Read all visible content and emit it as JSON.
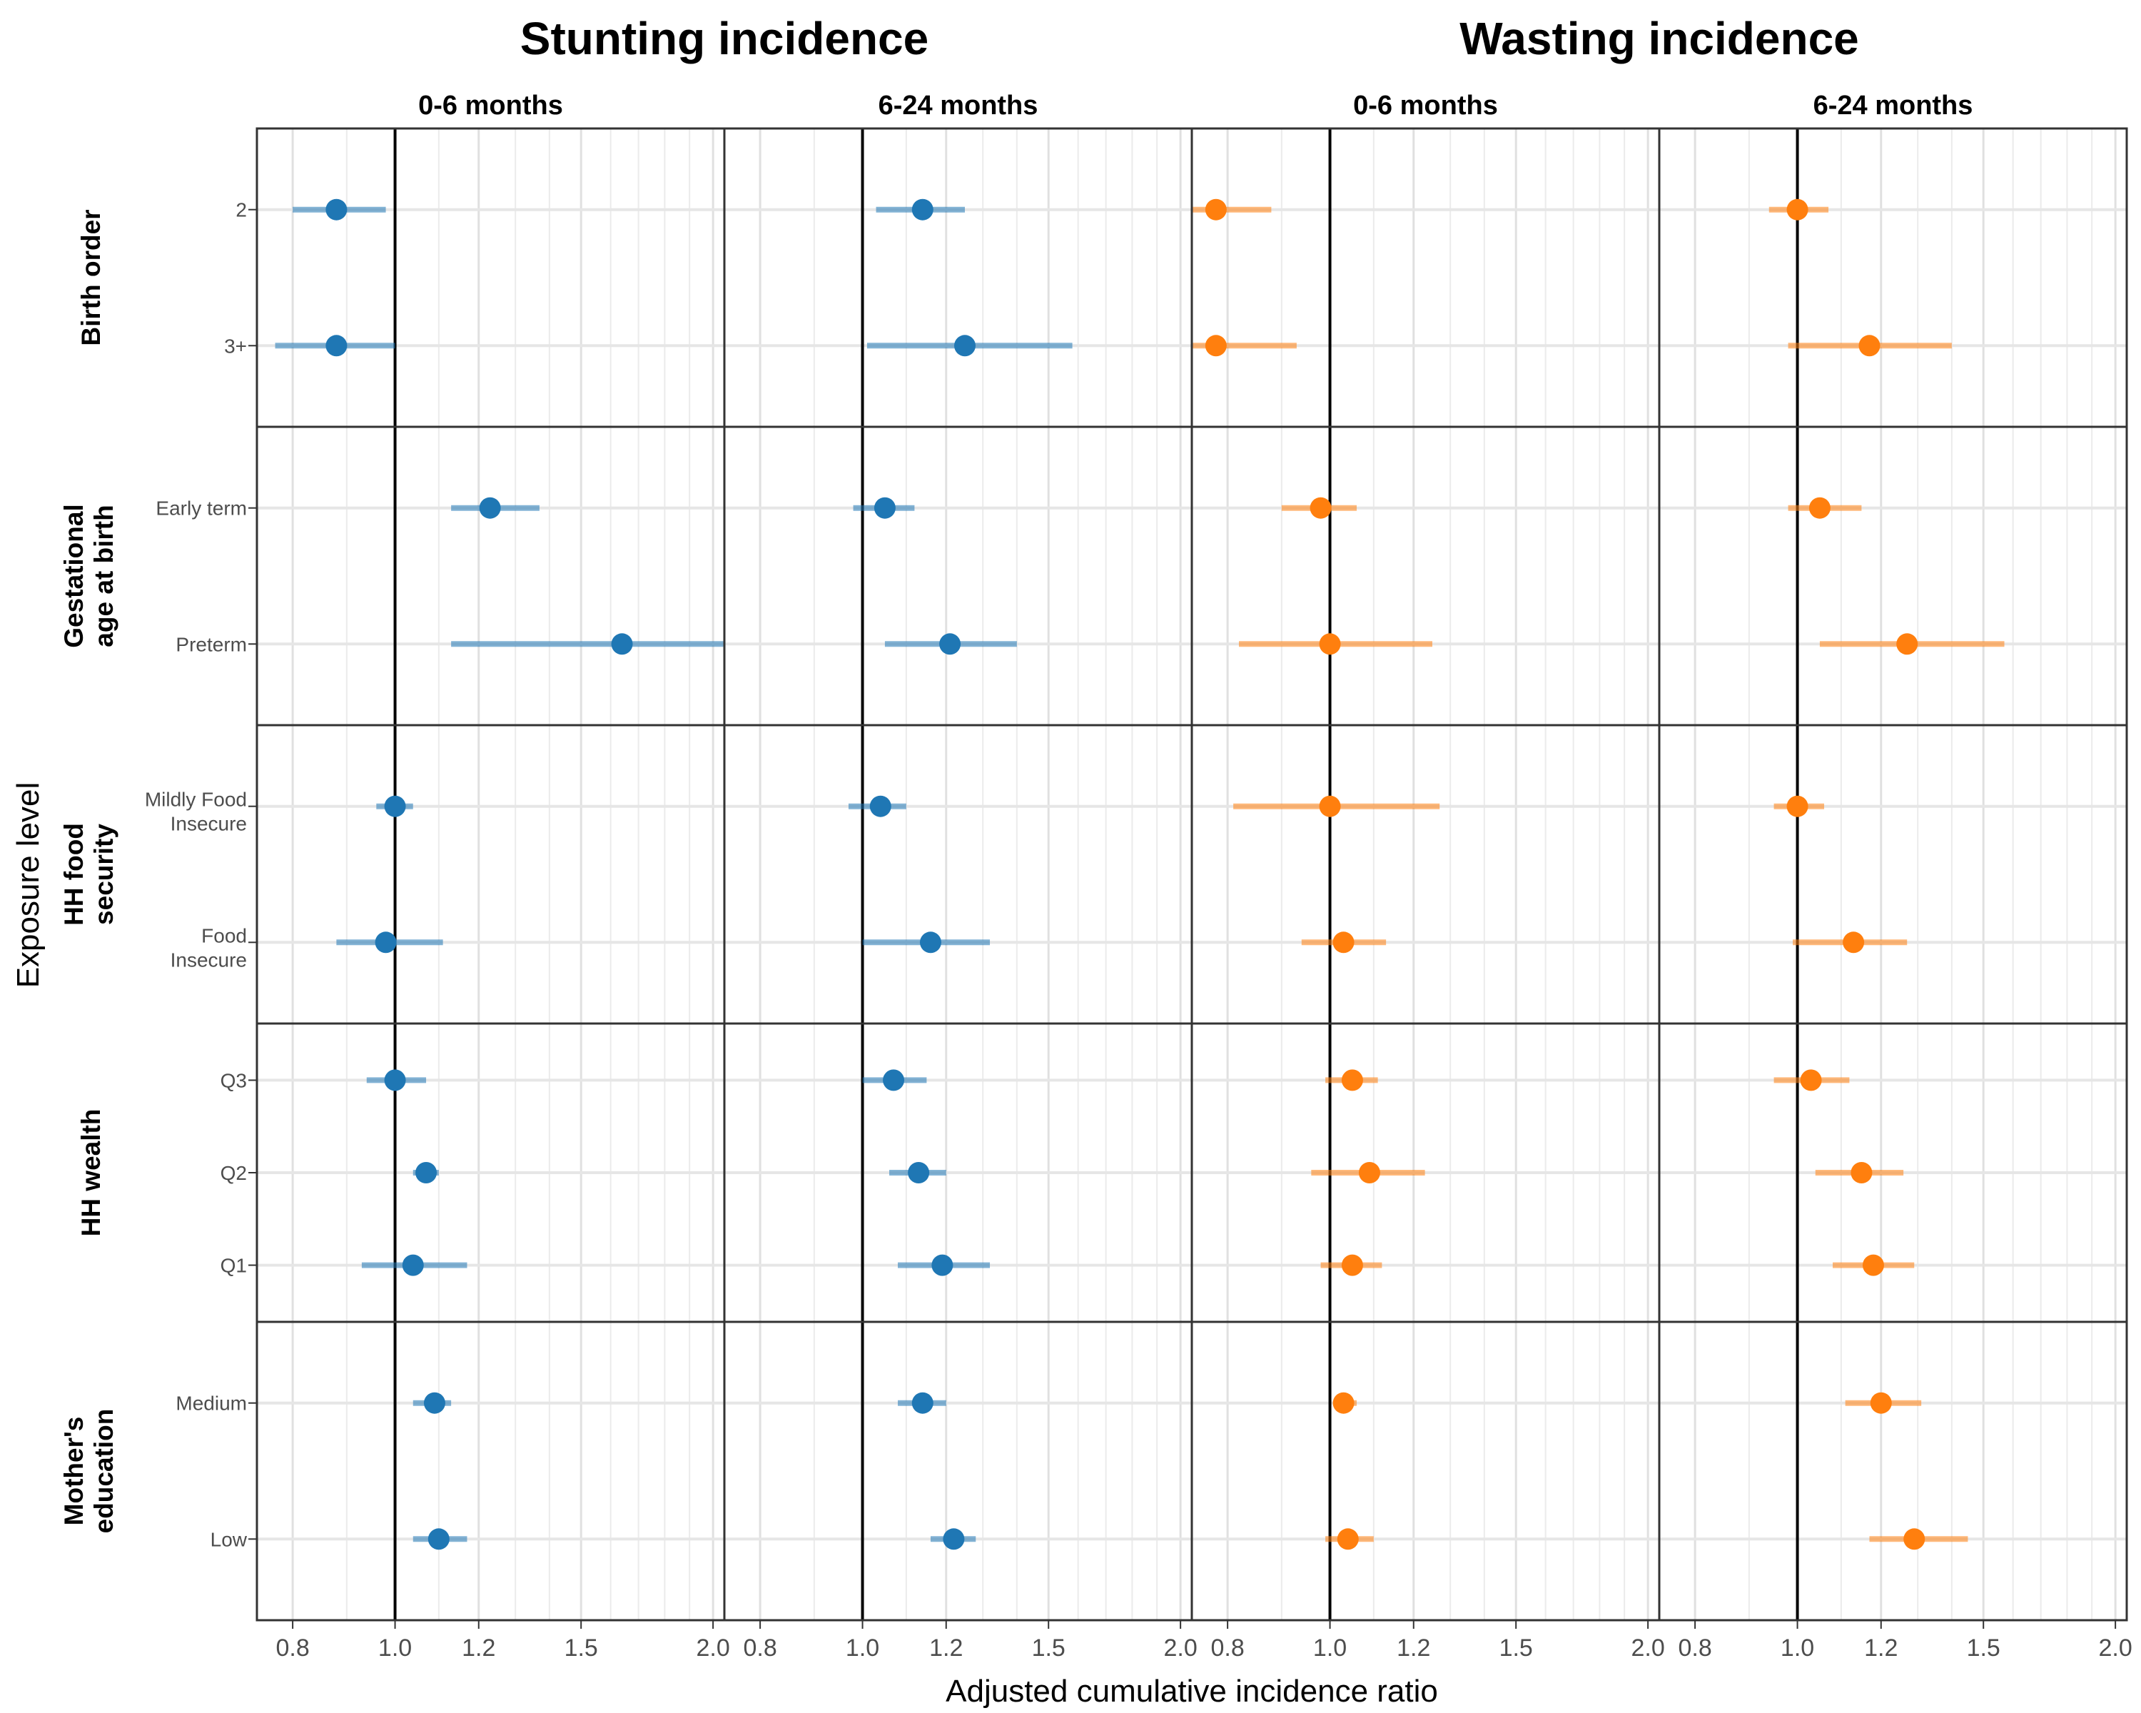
{
  "chart_data": {
    "type": "forest",
    "xscale": "log",
    "xlim": [
      0.74,
      2.05
    ],
    "reference_line": 1.0,
    "xticks": [
      0.8,
      1.0,
      1.2,
      1.5,
      2.0
    ],
    "xtick_labels": [
      "0.8",
      "1.0",
      "1.2",
      "1.5",
      "2.0"
    ],
    "xlabel": "Adjusted cumulative incidence ratio",
    "ylabel": "Exposure level",
    "grid": true,
    "colors": {
      "stunting": "#1f77b4",
      "wasting": "#ff7f0e"
    },
    "outcomes": [
      {
        "title": "Stunting incidence",
        "color": "#1f77b4",
        "column_span": [
          0,
          1
        ]
      },
      {
        "title": "Wasting incidence",
        "color": "#ff7f0e",
        "column_span": [
          2,
          3
        ]
      }
    ],
    "columns": [
      {
        "label": "0-6 months",
        "outcome": "stunting"
      },
      {
        "label": "6-24 months",
        "outcome": "stunting"
      },
      {
        "label": "0-6 months",
        "outcome": "wasting"
      },
      {
        "label": "6-24 months",
        "outcome": "wasting"
      }
    ],
    "groups": [
      {
        "label": "Birth order",
        "levels": [
          {
            "label": "2",
            "estimates": [
              [
                0.88,
                0.8,
                0.98
              ],
              [
                1.14,
                1.03,
                1.25
              ],
              [
                0.78,
                0.72,
                0.88
              ],
              [
                1.0,
                0.94,
                1.07
              ]
            ]
          },
          {
            "label": "3+",
            "estimates": [
              [
                0.88,
                0.77,
                1.0
              ],
              [
                1.25,
                1.01,
                1.58
              ],
              [
                0.78,
                0.72,
                0.93
              ],
              [
                1.17,
                0.98,
                1.4
              ]
            ]
          }
        ]
      },
      {
        "label": "Gestational age at birth",
        "levels": [
          {
            "label": "Early term",
            "estimates": [
              [
                1.23,
                1.13,
                1.37
              ],
              [
                1.05,
                0.98,
                1.12
              ],
              [
                0.98,
                0.9,
                1.06
              ],
              [
                1.05,
                0.98,
                1.15
              ]
            ]
          },
          {
            "label": "Preterm",
            "estimates": [
              [
                1.64,
                1.13,
                2.05
              ],
              [
                1.21,
                1.05,
                1.4
              ],
              [
                1.0,
                0.82,
                1.25
              ],
              [
                1.27,
                1.05,
                1.57
              ]
            ]
          }
        ]
      },
      {
        "label": "HH food security",
        "levels": [
          {
            "label": "Mildly Food Insecure",
            "estimates": [
              [
                1.0,
                0.96,
                1.04
              ],
              [
                1.04,
                0.97,
                1.1
              ],
              [
                1.0,
                0.81,
                1.27
              ],
              [
                1.0,
                0.95,
                1.06
              ]
            ]
          },
          {
            "label": "Food Insecure",
            "estimates": [
              [
                0.98,
                0.88,
                1.11
              ],
              [
                1.16,
                1.0,
                1.32
              ],
              [
                1.03,
                0.94,
                1.13
              ],
              [
                1.13,
                0.99,
                1.27
              ]
            ]
          }
        ]
      },
      {
        "label": "HH wealth",
        "levels": [
          {
            "label": "Q3",
            "estimates": [
              [
                1.0,
                0.94,
                1.07
              ],
              [
                1.07,
                1.0,
                1.15
              ],
              [
                1.05,
                0.99,
                1.11
              ],
              [
                1.03,
                0.95,
                1.12
              ]
            ]
          },
          {
            "label": "Q2",
            "estimates": [
              [
                1.07,
                1.04,
                1.1
              ],
              [
                1.13,
                1.06,
                1.2
              ],
              [
                1.09,
                0.96,
                1.23
              ],
              [
                1.15,
                1.04,
                1.26
              ]
            ]
          },
          {
            "label": "Q1",
            "estimates": [
              [
                1.04,
                0.93,
                1.17
              ],
              [
                1.19,
                1.08,
                1.32
              ],
              [
                1.05,
                0.98,
                1.12
              ],
              [
                1.18,
                1.08,
                1.29
              ]
            ]
          }
        ]
      },
      {
        "label": "Mother's education",
        "levels": [
          {
            "label": "Medium",
            "estimates": [
              [
                1.09,
                1.04,
                1.13
              ],
              [
                1.14,
                1.08,
                1.2
              ],
              [
                1.03,
                1.01,
                1.06
              ],
              [
                1.2,
                1.11,
                1.31
              ]
            ]
          },
          {
            "label": "Low",
            "estimates": [
              [
                1.1,
                1.04,
                1.17
              ],
              [
                1.22,
                1.16,
                1.28
              ],
              [
                1.04,
                0.99,
                1.1
              ],
              [
                1.29,
                1.17,
                1.45
              ]
            ]
          }
        ]
      }
    ]
  }
}
